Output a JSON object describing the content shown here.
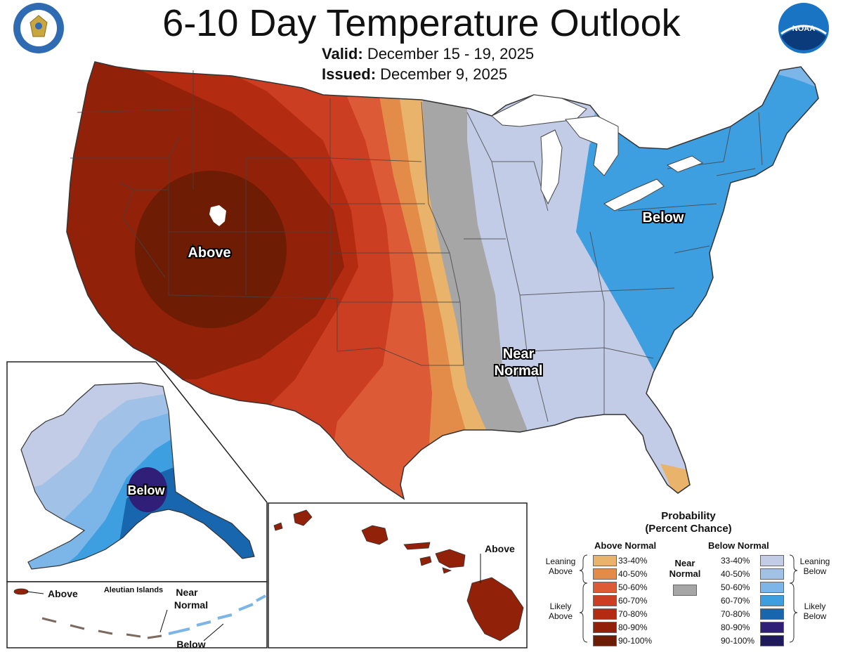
{
  "title": "6-10 Day Temperature Outlook",
  "valid_label": "Valid:",
  "valid_dates": "December 15 - 19, 2025",
  "issued_label": "Issued:",
  "issued_date": "December 9, 2025",
  "map_labels": {
    "conus_above": "Above",
    "conus_below": "Below",
    "conus_near_1": "Near",
    "conus_near_2": "Normal",
    "alaska_below": "Below",
    "hawaii_above": "Above",
    "aleutian_title": "Aleutian Islands",
    "aleutian_above": "Above",
    "aleutian_near_1": "Near",
    "aleutian_near_2": "Normal",
    "aleutian_below": "Below"
  },
  "legend": {
    "title_1": "Probability",
    "title_2": "(Percent Chance)",
    "above_header": "Above Normal",
    "below_header": "Below Normal",
    "near_1": "Near",
    "near_2": "Normal",
    "leaning_above_1": "Leaning",
    "leaning_above_2": "Above",
    "likely_above_1": "Likely",
    "likely_above_2": "Above",
    "leaning_below_1": "Leaning",
    "leaning_below_2": "Below",
    "likely_below_1": "Likely",
    "likely_below_2": "Below",
    "ranges": [
      "33-40%",
      "40-50%",
      "50-60%",
      "60-70%",
      "70-80%",
      "80-90%",
      "90-100%"
    ],
    "above_colors": [
      "#e9b36b",
      "#e38c4a",
      "#dc5a36",
      "#cc3e22",
      "#b32b10",
      "#912108",
      "#6e1c04"
    ],
    "below_colors": [
      "#c2cce6",
      "#a1c2e6",
      "#7cb5e8",
      "#3d9ee0",
      "#1866ae",
      "#2f1f78",
      "#1e1a5c"
    ],
    "near_color": "#a6a6a6"
  },
  "logos": {
    "commerce_seal": "DEPARTMENT OF COMMERCE UNITED STATES OF AMERICA",
    "noaa": "NOAA"
  }
}
